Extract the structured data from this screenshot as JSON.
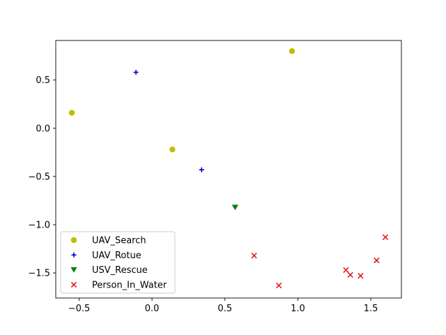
{
  "chart_data": {
    "type": "scatter",
    "title": "",
    "xlabel": "",
    "ylabel": "",
    "xlim": [
      -0.66,
      1.71
    ],
    "ylim": [
      -1.76,
      0.91
    ],
    "xticks": [
      {
        "value": -0.5,
        "label": "−0.5"
      },
      {
        "value": 0.0,
        "label": "0.0"
      },
      {
        "value": 0.5,
        "label": "0.5"
      },
      {
        "value": 1.0,
        "label": "1.0"
      },
      {
        "value": 1.5,
        "label": "1.5"
      }
    ],
    "yticks": [
      {
        "value": 0.5,
        "label": "0.5"
      },
      {
        "value": 0.0,
        "label": "0.0"
      },
      {
        "value": -0.5,
        "label": "−0.5"
      },
      {
        "value": -1.0,
        "label": "−1.0"
      },
      {
        "value": -1.5,
        "label": "−1.5"
      }
    ],
    "grid": false,
    "legend_position": "lower-left",
    "series": [
      {
        "name": "UAV_Search",
        "marker": "circle",
        "color": "#bfbf00",
        "points": [
          [
            -0.55,
            0.16
          ],
          [
            0.14,
            -0.22
          ],
          [
            0.96,
            0.8
          ]
        ]
      },
      {
        "name": "UAV_Rotue",
        "marker": "plus",
        "color": "#0000bf",
        "points": [
          [
            -0.11,
            0.58
          ],
          [
            0.34,
            -0.43
          ]
        ]
      },
      {
        "name": "USV_Rescue",
        "marker": "triangle-down",
        "color": "#008000",
        "points": [
          [
            0.57,
            -0.82
          ]
        ]
      },
      {
        "name": "Person_In_Water",
        "marker": "x",
        "color": "#e41a1c",
        "points": [
          [
            0.7,
            -1.32
          ],
          [
            0.87,
            -1.63
          ],
          [
            1.33,
            -1.47
          ],
          [
            1.36,
            -1.52
          ],
          [
            1.43,
            -1.53
          ],
          [
            1.54,
            -1.37
          ],
          [
            1.6,
            -1.13
          ]
        ]
      }
    ]
  }
}
